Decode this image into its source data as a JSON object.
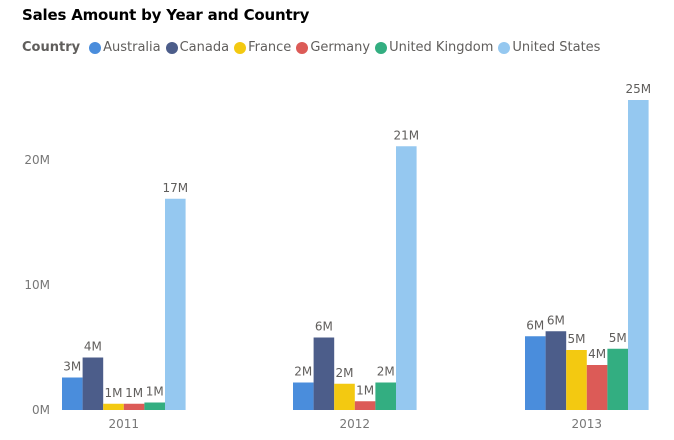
{
  "chart_data": {
    "type": "bar",
    "title": "Sales Amount by Year and Country",
    "legend_title": "Country",
    "legend_position": "top-left",
    "xlabel": "",
    "ylabel": "",
    "ylim": [
      0,
      26
    ],
    "y_ticks": [
      {
        "value": 0,
        "label": "0M"
      },
      {
        "value": 10,
        "label": "10M"
      },
      {
        "value": 20,
        "label": "20M"
      }
    ],
    "grid": false,
    "categories": [
      "2011",
      "2012",
      "2013"
    ],
    "series": [
      {
        "name": "Australia",
        "color": "#4A8DDC",
        "values": [
          2.6,
          2.2,
          5.9
        ],
        "labels": [
          "3M",
          "2M",
          "6M"
        ]
      },
      {
        "name": "Canada",
        "color": "#4C5D8A",
        "values": [
          4.2,
          5.8,
          6.3
        ],
        "labels": [
          "4M",
          "6M",
          "6M"
        ]
      },
      {
        "name": "France",
        "color": "#F3C911",
        "values": [
          0.5,
          2.1,
          4.8
        ],
        "labels": [
          "1M",
          "2M",
          "5M"
        ]
      },
      {
        "name": "Germany",
        "color": "#DC5B57",
        "values": [
          0.5,
          0.7,
          3.6
        ],
        "labels": [
          "1M",
          "1M",
          "4M"
        ]
      },
      {
        "name": "United Kingdom",
        "color": "#33AE81",
        "values": [
          0.6,
          2.2,
          4.9
        ],
        "labels": [
          "1M",
          "2M",
          "5M"
        ]
      },
      {
        "name": "United States",
        "color": "#95C8F0",
        "values": [
          16.9,
          21.1,
          24.8
        ],
        "labels": [
          "17M",
          "21M",
          "25M"
        ]
      }
    ]
  }
}
